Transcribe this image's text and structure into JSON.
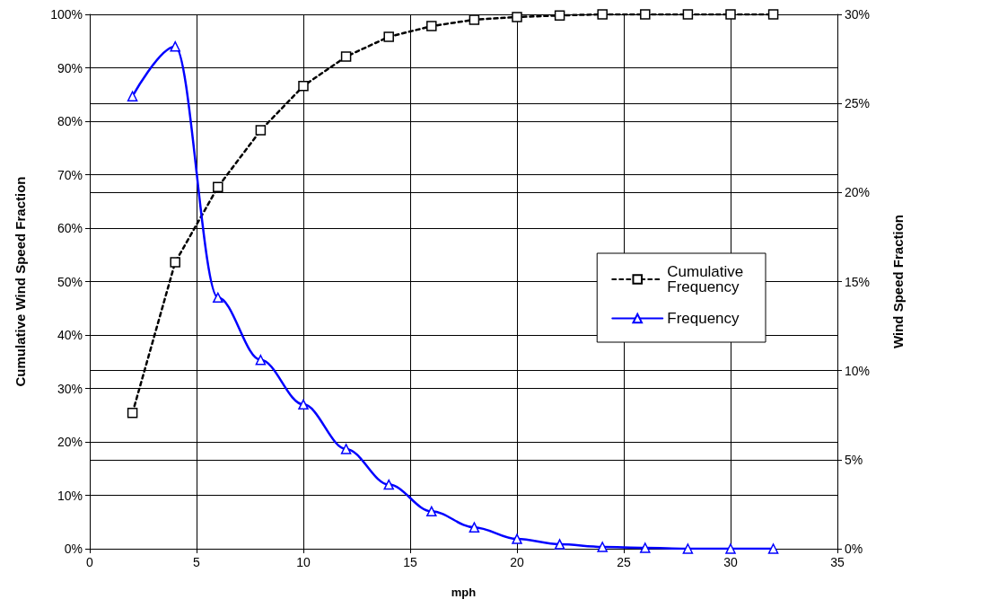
{
  "chart_data": {
    "type": "line",
    "xlabel": "mph",
    "ylabel": "Cumulative Wind Speed Fraction",
    "y2label": "Wind Speed Fraction",
    "xlim": [
      0,
      35
    ],
    "xticks": [
      0,
      5,
      10,
      15,
      20,
      25,
      30,
      35
    ],
    "ylim": [
      0,
      100
    ],
    "yticks": [
      {
        "value": 0,
        "label": "0%"
      },
      {
        "value": 10,
        "label": "10%"
      },
      {
        "value": 20,
        "label": "20%"
      },
      {
        "value": 30,
        "label": "30%"
      },
      {
        "value": 40,
        "label": "40%"
      },
      {
        "value": 50,
        "label": "50%"
      },
      {
        "value": 60,
        "label": "60%"
      },
      {
        "value": 70,
        "label": "70%"
      },
      {
        "value": 80,
        "label": "80%"
      },
      {
        "value": 90,
        "label": "90%"
      },
      {
        "value": 100,
        "label": "100%"
      }
    ],
    "y2lim": [
      0,
      30
    ],
    "y2ticks": [
      {
        "value": 0,
        "label": "0%"
      },
      {
        "value": 5,
        "label": "5%"
      },
      {
        "value": 10,
        "label": "10%"
      },
      {
        "value": 15,
        "label": "15%"
      },
      {
        "value": 20,
        "label": "20%"
      },
      {
        "value": 25,
        "label": "25%"
      },
      {
        "value": 30,
        "label": "30%"
      }
    ],
    "x": [
      2,
      4,
      6,
      8,
      10,
      12,
      14,
      16,
      18,
      20,
      22,
      24,
      26,
      28,
      30,
      32
    ],
    "series": [
      {
        "name": "Cumulative Frequency",
        "color": "#000000",
        "marker": "square",
        "line_style": "dashed",
        "values": [
          25.4,
          53.6,
          67.7,
          78.3,
          86.6,
          92.1,
          95.8,
          97.8,
          99.0,
          99.5,
          99.8,
          100,
          100,
          100,
          100,
          100
        ]
      },
      {
        "name": "Frequency",
        "color": "#0000ff",
        "marker": "triangle",
        "line_style": "solid",
        "axis": "y2",
        "values": [
          25.4,
          28.2,
          14.1,
          10.6,
          8.1,
          5.6,
          3.6,
          2.1,
          1.2,
          0.55,
          0.25,
          0.1,
          0.05,
          0,
          0,
          0
        ]
      }
    ],
    "grid": true,
    "legend": "right"
  }
}
